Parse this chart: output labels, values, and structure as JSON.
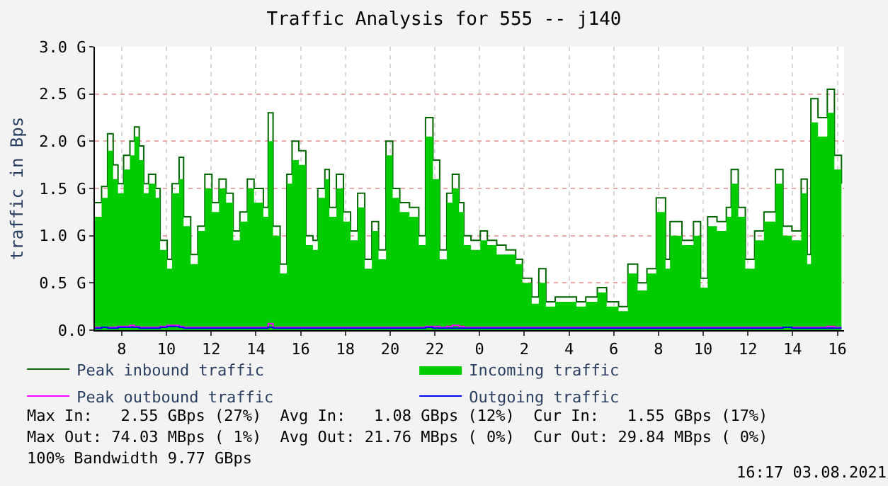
{
  "chart_data": {
    "type": "area",
    "title": "Traffic Analysis for 555 -- j140",
    "ylabel": "traffic in Bps",
    "x": [
      "2021-08-02T06:48",
      "2021-08-02T07:06",
      "2021-08-02T07:22",
      "2021-08-02T07:37",
      "2021-08-02T07:50",
      "2021-08-02T08:05",
      "2021-08-02T08:22",
      "2021-08-02T08:34",
      "2021-08-02T08:47",
      "2021-08-02T08:59",
      "2021-08-02T09:12",
      "2021-08-02T09:31",
      "2021-08-02T09:43",
      "2021-08-02T10:02",
      "2021-08-02T10:15",
      "2021-08-02T10:34",
      "2021-08-02T10:46",
      "2021-08-02T11:05",
      "2021-08-02T11:24",
      "2021-08-02T11:43",
      "2021-08-02T12:02",
      "2021-08-02T12:21",
      "2021-08-02T12:40",
      "2021-08-02T12:59",
      "2021-08-02T13:17",
      "2021-08-02T13:37",
      "2021-08-02T13:55",
      "2021-08-02T14:20",
      "2021-08-02T14:33",
      "2021-08-02T14:46",
      "2021-08-02T15:05",
      "2021-08-02T15:23",
      "2021-08-02T15:37",
      "2021-08-02T15:55",
      "2021-08-02T16:14",
      "2021-08-02T16:33",
      "2021-08-02T16:46",
      "2021-08-02T17:05",
      "2021-08-02T17:17",
      "2021-08-02T17:36",
      "2021-08-02T17:55",
      "2021-08-02T18:14",
      "2021-08-02T18:33",
      "2021-08-02T18:52",
      "2021-08-02T19:11",
      "2021-08-02T19:29",
      "2021-08-02T19:49",
      "2021-08-02T20:07",
      "2021-08-02T20:26",
      "2021-08-02T20:52",
      "2021-08-02T21:17",
      "2021-08-02T21:35",
      "2021-08-02T21:55",
      "2021-08-02T22:13",
      "2021-08-02T22:32",
      "2021-08-02T22:47",
      "2021-08-02T23:05",
      "2021-08-02T23:18",
      "2021-08-02T23:37",
      "2021-08-03T00:02",
      "2021-08-03T00:21",
      "2021-08-03T00:46",
      "2021-08-03T01:11",
      "2021-08-03T01:37",
      "2021-08-03T01:55",
      "2021-08-03T02:20",
      "2021-08-03T02:39",
      "2021-08-03T02:58",
      "2021-08-03T03:23",
      "2021-08-03T03:49",
      "2021-08-03T04:20",
      "2021-08-03T04:45",
      "2021-08-03T05:16",
      "2021-08-03T05:41",
      "2021-08-03T06:13",
      "2021-08-03T06:38",
      "2021-08-03T07:04",
      "2021-08-03T07:29",
      "2021-08-03T07:54",
      "2021-08-03T08:19",
      "2021-08-03T08:31",
      "2021-08-03T09:03",
      "2021-08-03T09:34",
      "2021-08-03T09:53",
      "2021-08-03T10:12",
      "2021-08-03T10:37",
      "2021-08-03T11:02",
      "2021-08-03T11:15",
      "2021-08-03T11:34",
      "2021-08-03T11:53",
      "2021-08-03T12:18",
      "2021-08-03T12:43",
      "2021-08-03T13:14",
      "2021-08-03T13:34",
      "2021-08-03T13:58",
      "2021-08-03T14:23",
      "2021-08-03T14:39",
      "2021-08-03T14:49",
      "2021-08-03T15:08",
      "2021-08-03T15:33",
      "2021-08-03T15:52",
      "2021-08-03T16:11"
    ],
    "series": [
      {
        "name": "Peak inbound traffic",
        "type": "step",
        "color": "#006600",
        "values": [
          1.35,
          1.52,
          2.08,
          1.75,
          1.55,
          1.85,
          2.0,
          2.15,
          1.95,
          1.55,
          1.65,
          1.5,
          0.95,
          0.75,
          1.55,
          1.83,
          1.2,
          0.8,
          1.1,
          1.65,
          1.35,
          1.6,
          1.45,
          1.05,
          1.25,
          1.6,
          1.5,
          1.3,
          2.3,
          1.1,
          0.7,
          1.65,
          2.0,
          1.9,
          1.0,
          0.95,
          1.5,
          1.7,
          1.3,
          1.65,
          1.25,
          1.05,
          1.45,
          0.75,
          1.15,
          0.85,
          2.0,
          1.5,
          1.35,
          1.3,
          1.0,
          2.25,
          1.8,
          0.85,
          1.45,
          1.65,
          1.35,
          1.0,
          0.95,
          1.05,
          0.95,
          0.9,
          0.85,
          0.75,
          0.55,
          0.35,
          0.65,
          0.3,
          0.35,
          0.35,
          0.3,
          0.35,
          0.45,
          0.3,
          0.25,
          0.7,
          0.5,
          0.65,
          1.4,
          0.75,
          1.15,
          0.95,
          1.15,
          0.55,
          1.2,
          1.15,
          1.3,
          1.7,
          1.3,
          0.75,
          1.05,
          1.25,
          1.7,
          1.1,
          1.05,
          1.6,
          0.8,
          2.45,
          2.25,
          2.55,
          1.85,
          1.55
        ]
      },
      {
        "name": "Incoming traffic",
        "color": "#00cc00",
        "values": [
          1.2,
          1.4,
          1.9,
          1.6,
          1.45,
          1.7,
          1.85,
          2.05,
          1.8,
          1.45,
          1.55,
          1.4,
          0.85,
          0.65,
          1.45,
          1.6,
          1.1,
          0.7,
          1.05,
          1.5,
          1.25,
          1.5,
          1.35,
          0.95,
          1.15,
          1.5,
          1.35,
          1.2,
          2.0,
          1.0,
          0.6,
          1.55,
          1.8,
          1.75,
          0.9,
          0.85,
          1.4,
          1.6,
          1.2,
          1.5,
          1.15,
          0.95,
          1.3,
          0.65,
          1.05,
          0.75,
          1.85,
          1.4,
          1.25,
          1.2,
          0.9,
          2.05,
          1.6,
          0.75,
          1.35,
          1.5,
          1.25,
          0.9,
          0.85,
          0.95,
          0.9,
          0.8,
          0.8,
          0.7,
          0.5,
          0.28,
          0.5,
          0.25,
          0.3,
          0.3,
          0.25,
          0.3,
          0.4,
          0.25,
          0.2,
          0.6,
          0.42,
          0.6,
          1.25,
          0.65,
          1.0,
          0.9,
          1.0,
          0.45,
          1.1,
          1.05,
          1.2,
          1.55,
          1.2,
          0.65,
          0.95,
          1.15,
          1.55,
          1.0,
          0.95,
          1.45,
          0.7,
          2.2,
          2.05,
          2.3,
          1.7,
          1.5
        ]
      },
      {
        "name": "Peak outbound traffic",
        "type": "step",
        "color": "#ff00ff",
        "values": [
          0.03,
          0.03,
          0.03,
          0.03,
          0.04,
          0.04,
          0.05,
          0.04,
          0.03,
          0.03,
          0.03,
          0.03,
          0.04,
          0.05,
          0.05,
          0.04,
          0.03,
          0.03,
          0.03,
          0.03,
          0.03,
          0.03,
          0.03,
          0.03,
          0.03,
          0.03,
          0.03,
          0.03,
          0.07,
          0.03,
          0.03,
          0.03,
          0.03,
          0.03,
          0.03,
          0.03,
          0.03,
          0.03,
          0.03,
          0.03,
          0.03,
          0.03,
          0.03,
          0.03,
          0.03,
          0.03,
          0.03,
          0.03,
          0.03,
          0.03,
          0.03,
          0.04,
          0.04,
          0.03,
          0.04,
          0.05,
          0.04,
          0.03,
          0.03,
          0.03,
          0.03,
          0.03,
          0.03,
          0.03,
          0.03,
          0.03,
          0.03,
          0.03,
          0.03,
          0.03,
          0.03,
          0.03,
          0.03,
          0.03,
          0.03,
          0.03,
          0.03,
          0.03,
          0.03,
          0.03,
          0.03,
          0.03,
          0.03,
          0.03,
          0.03,
          0.03,
          0.03,
          0.03,
          0.03,
          0.03,
          0.03,
          0.03,
          0.03,
          0.03,
          0.03,
          0.03,
          0.03,
          0.03,
          0.03,
          0.04,
          0.03,
          0.03
        ]
      },
      {
        "name": "Outgoing traffic",
        "type": "step",
        "color": "#0000ff",
        "values": [
          0.02,
          0.03,
          0.02,
          0.02,
          0.03,
          0.03,
          0.03,
          0.03,
          0.02,
          0.02,
          0.02,
          0.02,
          0.03,
          0.04,
          0.04,
          0.03,
          0.02,
          0.02,
          0.02,
          0.02,
          0.02,
          0.02,
          0.02,
          0.02,
          0.02,
          0.02,
          0.02,
          0.02,
          0.03,
          0.02,
          0.02,
          0.02,
          0.02,
          0.02,
          0.02,
          0.02,
          0.02,
          0.02,
          0.02,
          0.02,
          0.02,
          0.02,
          0.02,
          0.02,
          0.02,
          0.02,
          0.02,
          0.02,
          0.02,
          0.02,
          0.02,
          0.03,
          0.02,
          0.02,
          0.02,
          0.02,
          0.02,
          0.02,
          0.02,
          0.02,
          0.02,
          0.02,
          0.02,
          0.02,
          0.02,
          0.02,
          0.02,
          0.02,
          0.02,
          0.02,
          0.02,
          0.02,
          0.02,
          0.02,
          0.02,
          0.02,
          0.02,
          0.02,
          0.02,
          0.02,
          0.02,
          0.02,
          0.02,
          0.02,
          0.02,
          0.02,
          0.02,
          0.02,
          0.02,
          0.02,
          0.02,
          0.02,
          0.02,
          0.03,
          0.02,
          0.02,
          0.02,
          0.02,
          0.02,
          0.02,
          0.02,
          0.02
        ]
      }
    ],
    "xlim": [
      "2021-08-02T06:48",
      "2021-08-03T16:18"
    ],
    "xticks": [
      {
        "value": "2021-08-02T08:00",
        "label": "8"
      },
      {
        "value": "2021-08-02T10:00",
        "label": "10"
      },
      {
        "value": "2021-08-02T12:00",
        "label": "12"
      },
      {
        "value": "2021-08-02T14:00",
        "label": "14"
      },
      {
        "value": "2021-08-02T16:00",
        "label": "16"
      },
      {
        "value": "2021-08-02T18:00",
        "label": "18"
      },
      {
        "value": "2021-08-02T20:00",
        "label": "20"
      },
      {
        "value": "2021-08-02T22:00",
        "label": "22"
      },
      {
        "value": "2021-08-03T00:00",
        "label": "0"
      },
      {
        "value": "2021-08-03T02:00",
        "label": "2"
      },
      {
        "value": "2021-08-03T04:00",
        "label": "4"
      },
      {
        "value": "2021-08-03T06:00",
        "label": "6"
      },
      {
        "value": "2021-08-03T08:00",
        "label": "8"
      },
      {
        "value": "2021-08-03T10:00",
        "label": "10"
      },
      {
        "value": "2021-08-03T12:00",
        "label": "12"
      },
      {
        "value": "2021-08-03T14:00",
        "label": "14"
      },
      {
        "value": "2021-08-03T16:00",
        "label": "16"
      }
    ],
    "ylim": [
      0,
      3
    ],
    "yticks": [
      {
        "value": 0,
        "label": "0.0"
      },
      {
        "value": 0.5,
        "label": "0.5 G"
      },
      {
        "value": 1,
        "label": "1.0 G"
      },
      {
        "value": 1.5,
        "label": "1.5 G"
      },
      {
        "value": 2,
        "label": "2.0 G"
      },
      {
        "value": 2.5,
        "label": "2.5 G"
      },
      {
        "value": 3,
        "label": "3.0 G"
      }
    ],
    "grid": true,
    "legend": "bottom",
    "annotations": [
      "Max In:   2.55 GBps (27%)  Avg In:   1.08 GBps (12%)  Cur In:   1.55 GBps (17%)",
      "Max Out: 74.03 MBps ( 1%)  Avg Out: 21.76 MBps ( 0%)  Cur Out: 29.84 MBps ( 0%)",
      "100% Bandwidth 9.77 GBps",
      "16:17 03.08.2021"
    ]
  }
}
